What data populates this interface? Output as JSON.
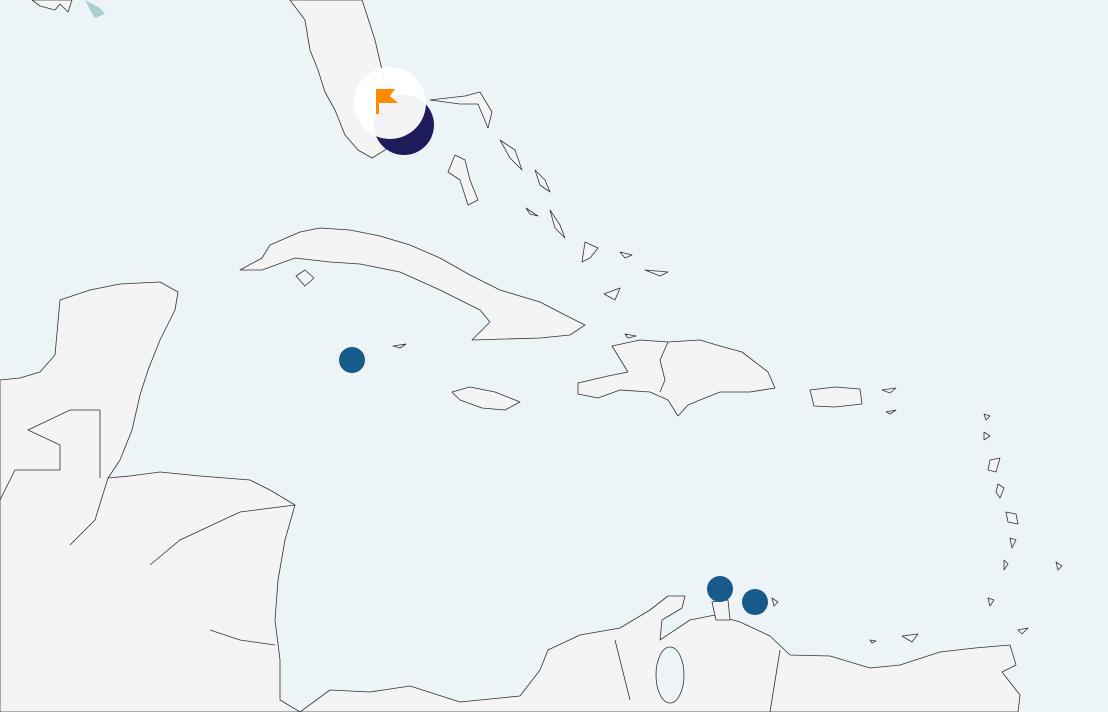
{
  "map": {
    "region": "Caribbean",
    "colors": {
      "water": "#ecf4f8",
      "land": "#f4f4f4",
      "marker": "#185a8a",
      "cluster": "#1e1b5a",
      "flag": "#ff8c00",
      "shallow": "#a9cfcf"
    },
    "markers": [
      {
        "type": "point",
        "icon": "circle-marker"
      },
      {
        "type": "point",
        "icon": "circle-marker"
      },
      {
        "type": "point",
        "icon": "circle-marker"
      }
    ],
    "selected_marker": {
      "icon": "flag-icon"
    }
  }
}
